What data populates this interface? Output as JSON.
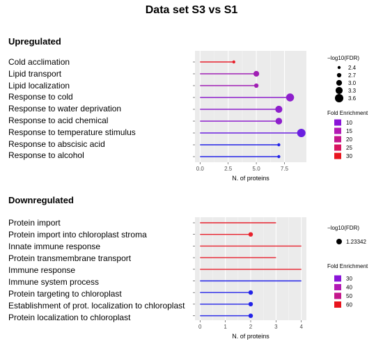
{
  "title": "Data set S3 vs S1",
  "chart_data": [
    {
      "type": "lollipop",
      "section": "Upregulated",
      "categories": [
        "Cold acclimation",
        "Lipid transport",
        "Lipid localization",
        "Response to cold",
        "Response to water deprivation",
        "Response to acid chemical",
        "Response to temperature stimulus",
        "Response to abscisic acid",
        "Response to alcohol"
      ],
      "values": [
        3,
        5,
        5,
        8,
        7,
        7,
        9,
        7,
        7
      ],
      "neg_log10_fdr": [
        2.4,
        3.0,
        2.7,
        3.5,
        3.3,
        3.2,
        3.6,
        2.4,
        2.4
      ],
      "fold_enrichment": [
        30,
        15,
        15,
        13,
        12,
        12,
        11,
        8,
        8
      ],
      "colors": [
        "#e8212c",
        "#a01fb4",
        "#a01fb4",
        "#8e1fcc",
        "#8e1fcc",
        "#8e1fcc",
        "#6a1fe0",
        "#2222e8",
        "#2222e8"
      ],
      "xlabel": "N. of proteins",
      "xticks": [
        "0.0",
        "2.5",
        "5.0",
        "7.5"
      ],
      "xlim": [
        -0.45,
        9.45
      ],
      "size_legend": {
        "title": "−log10(FDR)",
        "items": [
          "2.4",
          "2.7",
          "3.0",
          "3.3",
          "3.6"
        ]
      },
      "color_legend": {
        "title": "Fold Enrichment",
        "items": [
          "10",
          "15",
          "20",
          "25",
          "30"
        ],
        "colors": [
          "#8a14d8",
          "#b318b4",
          "#c4168c",
          "#d81460",
          "#e8141e"
        ]
      }
    },
    {
      "type": "lollipop",
      "section": "Downregulated",
      "categories": [
        "Protein import",
        "Protein import into chloroplast stroma",
        "Innate immune response",
        "Protein transmembrane transport",
        "Immune response",
        "Immune system process",
        "Protein targeting to chloroplast",
        "Establishment of prot. localization to chloroplast",
        "Protein localization to chloroplast"
      ],
      "values": [
        3,
        2,
        4,
        3,
        4,
        4,
        2,
        2,
        2
      ],
      "neg_log10_fdr": [
        1.23342,
        1.23342,
        1.23342,
        1.23342,
        1.23342,
        1.23342,
        1.23342,
        1.23342,
        1.23342
      ],
      "fold_enrichment": [
        60,
        60,
        60,
        60,
        60,
        30,
        30,
        30,
        30
      ],
      "colors": [
        "#e8212c",
        "#e8212c",
        "#e8212c",
        "#e8212c",
        "#e8212c",
        "#2222e8",
        "#2222e8",
        "#2222e8",
        "#2222e8"
      ],
      "marker_visible": [
        false,
        true,
        false,
        false,
        false,
        false,
        true,
        true,
        true
      ],
      "xlabel": "N. of proteins",
      "xticks": [
        "0",
        "1",
        "2",
        "3",
        "4"
      ],
      "xlim": [
        -0.2,
        4.2
      ],
      "size_legend": {
        "title": "−log10(FDR)",
        "items": [
          "1.23342"
        ]
      },
      "color_legend": {
        "title": "Fold Enrichment",
        "items": [
          "30",
          "40",
          "50",
          "60"
        ],
        "colors": [
          "#8a14d8",
          "#b318b4",
          "#c4168c",
          "#e8141e"
        ]
      }
    }
  ]
}
